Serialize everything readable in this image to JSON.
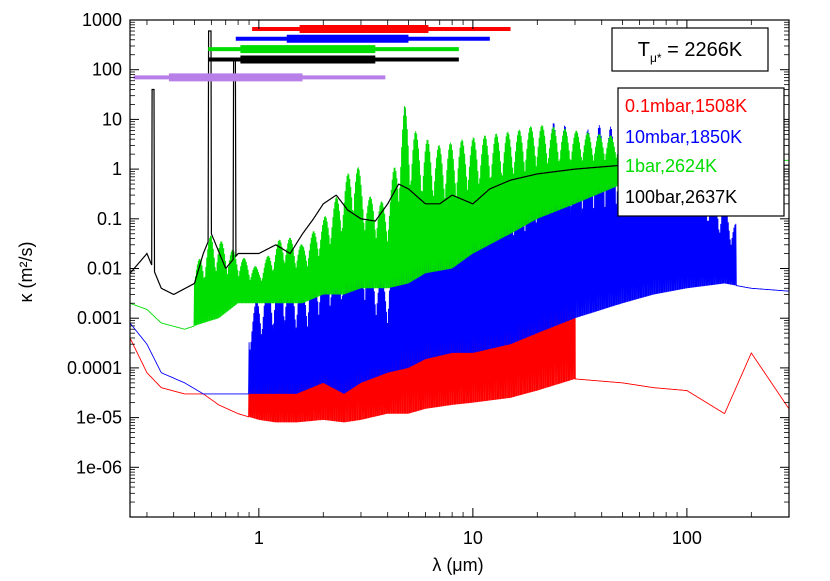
{
  "chart_data": {
    "type": "line",
    "title": "",
    "xlabel": "λ (μm)",
    "ylabel": "κ (m²/s)",
    "x_scale": "log",
    "y_scale": "log",
    "xlim": [
      0.25,
      300
    ],
    "ylim": [
      1e-07,
      1000
    ],
    "x_ticks": [
      {
        "value": 1,
        "label": "1"
      },
      {
        "value": 10,
        "label": "10"
      },
      {
        "value": 100,
        "label": "100"
      }
    ],
    "y_ticks": [
      {
        "value": 1000,
        "label": "1000"
      },
      {
        "value": 100,
        "label": "100"
      },
      {
        "value": 10,
        "label": "10"
      },
      {
        "value": 1,
        "label": "1"
      },
      {
        "value": 0.1,
        "label": "0.1"
      },
      {
        "value": 0.01,
        "label": "0.01"
      },
      {
        "value": 0.001,
        "label": "0.001"
      },
      {
        "value": 0.0001,
        "label": "0.0001"
      },
      {
        "value": 1e-05,
        "label": "1e-05"
      },
      {
        "value": 1e-06,
        "label": "1e-06"
      }
    ],
    "annotation": {
      "prefix": "T",
      "subscript": "μ*",
      "suffix": " = 2266K"
    },
    "legend_position": "top-right",
    "series": [
      {
        "name": "0.1mbar,1508K",
        "color": "#ff0000",
        "points": [
          [
            0.25,
            0.0004
          ],
          [
            0.3,
            8e-05
          ],
          [
            0.35,
            4e-05
          ],
          [
            0.45,
            3e-05
          ],
          [
            0.55,
            3e-05
          ],
          [
            0.65,
            1.8e-05
          ],
          [
            0.8,
            1.2e-05
          ],
          [
            1.0,
            9e-06
          ],
          [
            1.2,
            8e-06
          ],
          [
            1.5,
            8e-06
          ],
          [
            2.0,
            9e-06
          ],
          [
            2.5,
            8e-06
          ],
          [
            3.0,
            9e-06
          ],
          [
            4.0,
            1.2e-05
          ],
          [
            5.0,
            1.2e-05
          ],
          [
            6.0,
            1.5e-05
          ],
          [
            8.0,
            1.8e-05
          ],
          [
            10.0,
            2e-05
          ],
          [
            15.0,
            2.5e-05
          ],
          [
            20.0,
            3.5e-05
          ],
          [
            30.0,
            6e-05
          ],
          [
            50.0,
            5e-05
          ],
          [
            70.0,
            4e-05
          ],
          [
            100.0,
            3.5e-05
          ],
          [
            150.0,
            1.2e-05
          ],
          [
            200.0,
            0.0002
          ],
          [
            300.0,
            1.5e-05
          ]
        ],
        "envelope": [
          [
            0.9,
            0.0003
          ],
          [
            1.0,
            0.0008
          ],
          [
            1.3,
            0.002
          ],
          [
            1.6,
            0.0015
          ],
          [
            2.0,
            0.008
          ],
          [
            2.5,
            0.02
          ],
          [
            2.8,
            0.4
          ],
          [
            3.2,
            0.008
          ],
          [
            4.0,
            0.002
          ],
          [
            4.8,
            8.0
          ],
          [
            5.5,
            0.3
          ],
          [
            7.0,
            0.05
          ],
          [
            9.0,
            0.3
          ],
          [
            12.0,
            0.5
          ],
          [
            16.0,
            1.0
          ],
          [
            20.0,
            3.0
          ],
          [
            25.0,
            8.0
          ],
          [
            30.0,
            1.0
          ]
        ]
      },
      {
        "name": "10mbar,1850K",
        "color": "#0000ff",
        "points": [
          [
            0.25,
            0.0008
          ],
          [
            0.3,
            0.0003
          ],
          [
            0.35,
            8e-05
          ],
          [
            0.45,
            5e-05
          ],
          [
            0.55,
            3e-05
          ],
          [
            0.65,
            3e-05
          ],
          [
            0.8,
            3e-05
          ],
          [
            1.0,
            3e-05
          ],
          [
            1.5,
            3e-05
          ],
          [
            2.0,
            5e-05
          ],
          [
            2.5,
            3e-05
          ],
          [
            3.0,
            5e-05
          ],
          [
            4.0,
            8e-05
          ],
          [
            5.0,
            0.0001
          ],
          [
            6.0,
            0.00015
          ],
          [
            8.0,
            0.0002
          ],
          [
            10.0,
            0.0002
          ],
          [
            15.0,
            0.0003
          ],
          [
            20.0,
            0.0005
          ],
          [
            30.0,
            0.001
          ],
          [
            50.0,
            0.002
          ],
          [
            70.0,
            0.003
          ],
          [
            100.0,
            0.004
          ],
          [
            150.0,
            0.005
          ],
          [
            200.0,
            0.004
          ],
          [
            300.0,
            0.0035
          ]
        ],
        "envelope": [
          [
            0.9,
            0.001
          ],
          [
            1.0,
            0.003
          ],
          [
            1.3,
            0.01
          ],
          [
            1.6,
            0.005
          ],
          [
            2.0,
            0.02
          ],
          [
            2.5,
            0.05
          ],
          [
            2.8,
            0.6
          ],
          [
            3.2,
            0.02
          ],
          [
            4.0,
            0.005
          ],
          [
            4.8,
            20.0
          ],
          [
            5.5,
            1.0
          ],
          [
            7.0,
            0.2
          ],
          [
            9.0,
            0.5
          ],
          [
            12.0,
            1.0
          ],
          [
            16.0,
            2.0
          ],
          [
            20.0,
            5.0
          ],
          [
            25.0,
            10.0
          ],
          [
            30.0,
            5.0
          ],
          [
            40.0,
            8.0
          ],
          [
            60.0,
            5.0
          ],
          [
            100.0,
            3.0
          ],
          [
            170.0,
            0.08
          ]
        ]
      },
      {
        "name": "1bar,2624K",
        "color": "#00dd00",
        "points": [
          [
            0.25,
            0.002
          ],
          [
            0.3,
            0.0015
          ],
          [
            0.35,
            0.0008
          ],
          [
            0.45,
            0.0006
          ],
          [
            0.55,
            0.0008
          ],
          [
            0.65,
            0.001
          ],
          [
            0.8,
            0.002
          ],
          [
            1.0,
            0.002
          ],
          [
            1.3,
            0.002
          ],
          [
            1.6,
            0.002
          ],
          [
            2.0,
            0.003
          ],
          [
            2.5,
            0.003
          ],
          [
            3.0,
            0.004
          ],
          [
            4.0,
            0.004
          ],
          [
            5.0,
            0.005
          ],
          [
            6.0,
            0.008
          ],
          [
            8.0,
            0.01
          ],
          [
            10.0,
            0.02
          ],
          [
            15.0,
            0.05
          ],
          [
            20.0,
            0.1
          ],
          [
            30.0,
            0.2
          ],
          [
            50.0,
            0.5
          ],
          [
            70.0,
            1.0
          ],
          [
            100.0,
            1.5
          ]
        ],
        "envelope": [
          [
            0.5,
            0.01
          ],
          [
            0.6,
            0.05
          ],
          [
            0.8,
            0.02
          ],
          [
            1.0,
            0.01
          ],
          [
            1.3,
            0.05
          ],
          [
            1.6,
            0.03
          ],
          [
            2.0,
            0.1
          ],
          [
            2.5,
            0.5
          ],
          [
            2.8,
            2.0
          ],
          [
            3.2,
            0.3
          ],
          [
            4.0,
            0.2
          ],
          [
            4.8,
            20.0
          ],
          [
            5.5,
            5.0
          ],
          [
            7.0,
            3.0
          ],
          [
            9.0,
            4.0
          ],
          [
            12.0,
            5.0
          ],
          [
            16.0,
            6.0
          ],
          [
            20.0,
            8.0
          ],
          [
            30.0,
            6.0
          ],
          [
            40.0,
            5.0
          ],
          [
            60.0,
            4.0
          ],
          [
            100.0,
            3.0
          ]
        ]
      },
      {
        "name": "100bar,2637K",
        "color": "#000000",
        "points": [
          [
            0.25,
            0.008
          ],
          [
            0.3,
            0.02
          ],
          [
            0.35,
            0.004
          ],
          [
            0.4,
            0.003
          ],
          [
            0.5,
            0.005
          ],
          [
            0.55,
            0.02
          ],
          [
            0.6,
            0.05
          ],
          [
            0.7,
            0.01
          ],
          [
            0.8,
            0.02
          ],
          [
            0.9,
            0.02
          ],
          [
            1.0,
            0.02
          ],
          [
            1.2,
            0.03
          ],
          [
            1.4,
            0.02
          ],
          [
            1.6,
            0.05
          ],
          [
            1.8,
            0.1
          ],
          [
            2.0,
            0.2
          ],
          [
            2.3,
            0.3
          ],
          [
            2.6,
            0.15
          ],
          [
            3.0,
            0.1
          ],
          [
            3.5,
            0.09
          ],
          [
            4.0,
            0.2
          ],
          [
            4.5,
            0.5
          ],
          [
            5.0,
            0.4
          ],
          [
            6.0,
            0.2
          ],
          [
            7.0,
            0.2
          ],
          [
            8.0,
            0.3
          ],
          [
            10.0,
            0.2
          ],
          [
            12.0,
            0.4
          ],
          [
            15.0,
            0.6
          ],
          [
            20.0,
            0.8
          ],
          [
            30.0,
            1.0
          ],
          [
            50.0,
            1.2
          ],
          [
            80.0,
            1.3
          ],
          [
            100.0,
            1.2
          ]
        ],
        "spikes": [
          [
            0.32,
            40.0
          ],
          [
            0.59,
            600.0
          ],
          [
            0.77,
            150.0
          ]
        ]
      }
    ],
    "bars": [
      {
        "color": "#ff0000",
        "thin": [
          0.93,
          15.0
        ],
        "thick": [
          1.55,
          6.2
        ],
        "level": 660
      },
      {
        "color": "#0000ff",
        "thin": [
          0.78,
          12.0
        ],
        "thick": [
          1.35,
          5.0
        ],
        "level": 420
      },
      {
        "color": "#00dd00",
        "thin": [
          0.58,
          8.6
        ],
        "thick": [
          0.82,
          3.5
        ],
        "level": 260
      },
      {
        "color": "#000000",
        "thin": [
          0.58,
          8.6
        ],
        "thick": [
          0.82,
          3.5
        ],
        "level": 160
      },
      {
        "color": "#b87fe8",
        "thin": [
          0.26,
          3.9
        ],
        "thick": [
          0.38,
          1.6
        ],
        "level": 70
      }
    ]
  }
}
